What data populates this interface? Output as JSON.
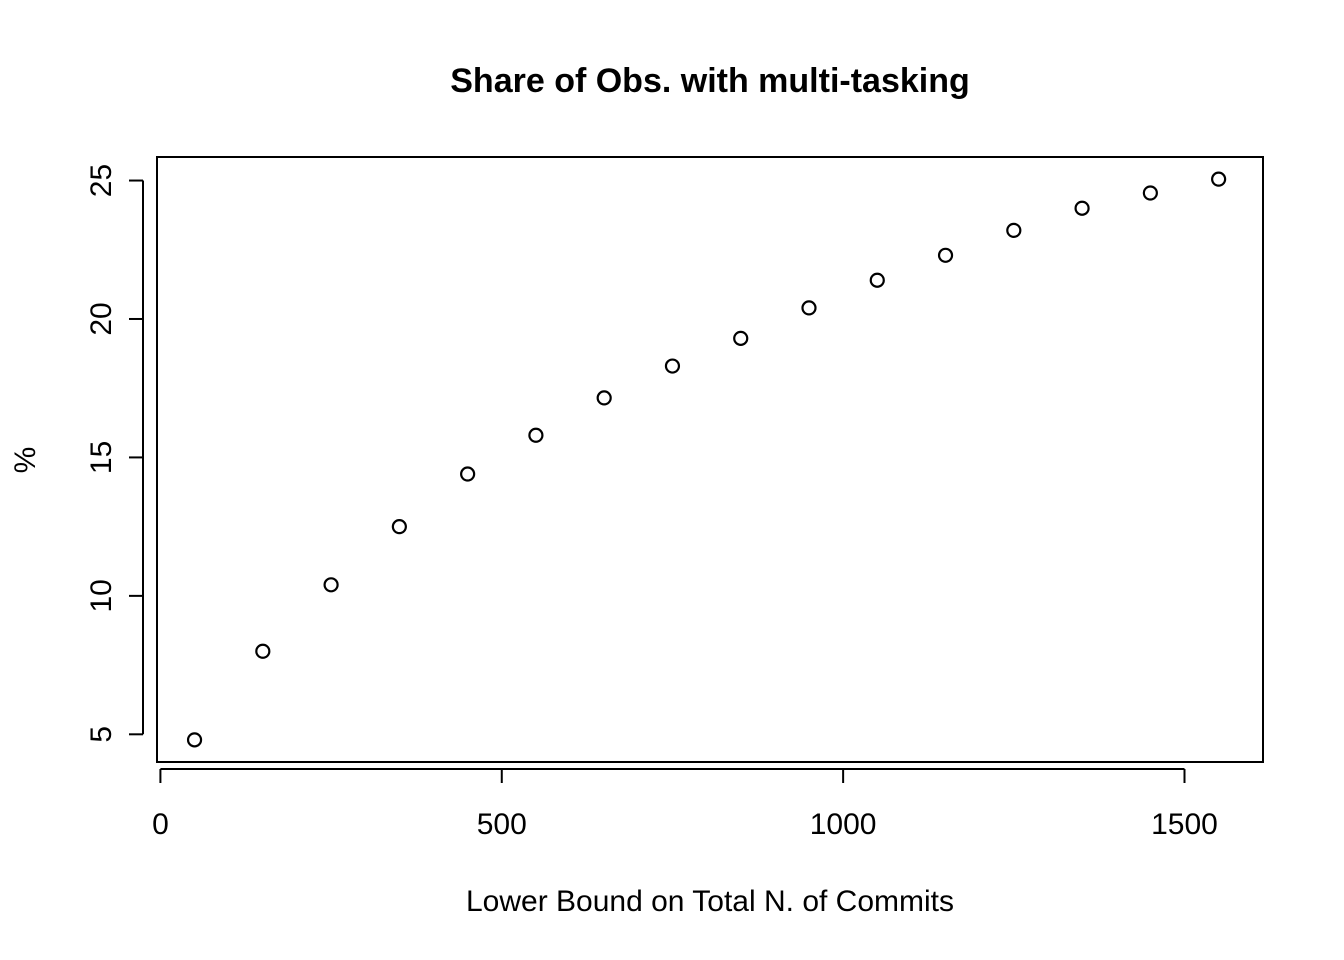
{
  "chart_data": {
    "type": "scatter",
    "title": "Share of Obs. with multi-tasking",
    "xlabel": "Lower Bound on Total N. of Commits",
    "ylabel": "%",
    "xlim": [
      -5,
      1615
    ],
    "ylim": [
      4.0,
      25.85
    ],
    "xticks": [
      0,
      500,
      1000,
      1500
    ],
    "yticks": [
      5,
      10,
      15,
      20,
      25
    ],
    "grid": false,
    "legend": "none",
    "x": [
      50,
      150,
      250,
      350,
      450,
      550,
      650,
      750,
      850,
      950,
      1050,
      1150,
      1250,
      1350,
      1450,
      1550
    ],
    "y": [
      4.8,
      8.0,
      10.4,
      12.5,
      14.4,
      15.8,
      17.15,
      18.3,
      19.3,
      20.4,
      21.4,
      22.3,
      23.2,
      24.0,
      24.55,
      25.05
    ]
  }
}
